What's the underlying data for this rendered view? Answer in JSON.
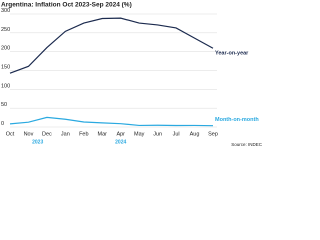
{
  "chart_data": {
    "type": "line",
    "title": "Argentina: Inflation Oct 2023-Sep 2024 (%)",
    "source": "Source: INDEC",
    "categories": [
      "Oct",
      "Nov",
      "Dec",
      "Jan",
      "Feb",
      "Mar",
      "Apr",
      "May",
      "Jun",
      "Jul",
      "Aug",
      "Sep"
    ],
    "year_labels": [
      "2023",
      "2024"
    ],
    "series": [
      {
        "name": "Year-on-year",
        "color": "#1b2a4e",
        "values": [
          143,
          161,
          211,
          254,
          276,
          288,
          289,
          276,
          271,
          263,
          236,
          209
        ]
      },
      {
        "name": "Month-on-month",
        "color": "#2aa9e0",
        "values": [
          8.3,
          12.8,
          25.5,
          20.6,
          13.2,
          11,
          8.8,
          4.2,
          4.6,
          4,
          4.2,
          3.5
        ]
      }
    ],
    "ylim": [
      0,
      300
    ],
    "yticks": [
      0,
      50,
      100,
      150,
      200,
      250,
      300
    ],
    "grid": true
  }
}
